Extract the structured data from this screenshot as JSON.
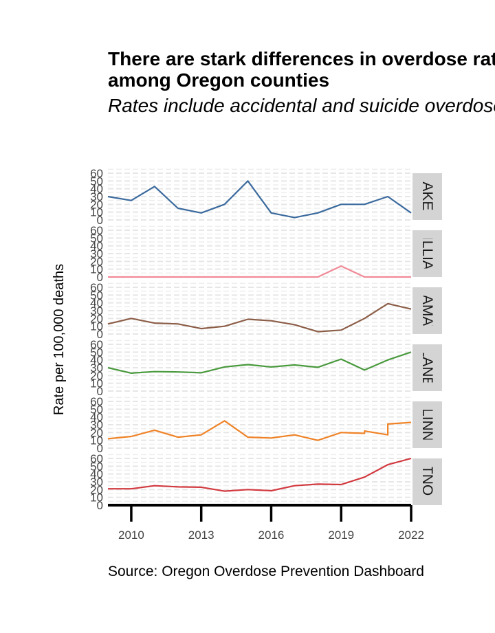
{
  "chart_data": {
    "type": "line",
    "title_lines": [
      "There are stark differences in overdose rates",
      "among Oregon counties"
    ],
    "subtitle": "Rates include accidental and suicide overdoses",
    "caption": "Source: Oregon Overdose Prevention Dashboard",
    "ylabel": "Rate per 100,000 deaths",
    "xlabel": "",
    "xlim": [
      2009,
      2022
    ],
    "ylim": [
      0,
      60
    ],
    "x_ticks": [
      2010,
      2013,
      2016,
      2019,
      2022
    ],
    "y_ticks": [
      0,
      10,
      20,
      30,
      40,
      50,
      60
    ],
    "grid": true,
    "facets": [
      {
        "label": "BAKER",
        "color": "#3b6a9e",
        "points": [
          [
            2009,
            30
          ],
          [
            2010,
            25
          ],
          [
            2011,
            43
          ],
          [
            2012,
            15
          ],
          [
            2013,
            9
          ],
          [
            2014,
            20
          ],
          [
            2015,
            50
          ],
          [
            2016,
            9
          ],
          [
            2017,
            3
          ],
          [
            2018,
            9
          ],
          [
            2019,
            20
          ],
          [
            2020,
            20
          ],
          [
            2021,
            30
          ],
          [
            2022,
            9
          ]
        ]
      },
      {
        "label": "GILLIAM",
        "color": "#f08a97",
        "points": [
          [
            2009,
            0
          ],
          [
            2010,
            0
          ],
          [
            2011,
            0
          ],
          [
            2012,
            0
          ],
          [
            2013,
            0
          ],
          [
            2014,
            0
          ],
          [
            2015,
            0
          ],
          [
            2016,
            0
          ],
          [
            2017,
            0
          ],
          [
            2018,
            0
          ],
          [
            2019,
            14
          ],
          [
            2020,
            0
          ],
          [
            2021,
            0
          ],
          [
            2022,
            0
          ]
        ]
      },
      {
        "label": "KLAMATH",
        "color": "#8c5e48",
        "points": [
          [
            2009,
            13
          ],
          [
            2010,
            20
          ],
          [
            2011,
            14
          ],
          [
            2012,
            13
          ],
          [
            2013,
            7
          ],
          [
            2014,
            10
          ],
          [
            2015,
            19
          ],
          [
            2016,
            17
          ],
          [
            2017,
            12
          ],
          [
            2018,
            3
          ],
          [
            2019,
            5
          ],
          [
            2020,
            20
          ],
          [
            2021,
            39
          ],
          [
            2022,
            32
          ]
        ]
      },
      {
        "label": "LANE",
        "color": "#4a9a3e",
        "points": [
          [
            2009,
            30
          ],
          [
            2010,
            23
          ],
          [
            2011,
            25
          ],
          [
            2012,
            24.5
          ],
          [
            2013,
            23.5
          ],
          [
            2014,
            31
          ],
          [
            2015,
            34
          ],
          [
            2016,
            31
          ],
          [
            2017,
            33.5
          ],
          [
            2018,
            30.5
          ],
          [
            2019,
            41
          ],
          [
            2020,
            27
          ],
          [
            2021,
            40
          ],
          [
            2022,
            50
          ]
        ]
      },
      {
        "label": "LINN",
        "color": "#ef8328",
        "points": [
          [
            2009,
            12
          ],
          [
            2010,
            15
          ],
          [
            2011,
            23
          ],
          [
            2012,
            14
          ],
          [
            2013,
            17
          ],
          [
            2014,
            35
          ],
          [
            2015,
            14
          ],
          [
            2016,
            13
          ],
          [
            2017,
            17
          ],
          [
            2018,
            10
          ],
          [
            2019,
            20
          ],
          [
            2020,
            19
          ],
          [
            2020,
            22
          ],
          [
            2021,
            17
          ],
          [
            2021,
            31
          ],
          [
            2022,
            33
          ]
        ]
      },
      {
        "label": "MULTNOMAH",
        "color": "#d2393f",
        "points": [
          [
            2009,
            21
          ],
          [
            2010,
            21
          ],
          [
            2011,
            25
          ],
          [
            2012,
            23.5
          ],
          [
            2013,
            23
          ],
          [
            2014,
            18
          ],
          [
            2015,
            20
          ],
          [
            2016,
            18.5
          ],
          [
            2017,
            25
          ],
          [
            2018,
            27
          ],
          [
            2019,
            26.5
          ],
          [
            2020,
            36
          ],
          [
            2021,
            52
          ],
          [
            2022,
            60
          ]
        ]
      }
    ]
  }
}
